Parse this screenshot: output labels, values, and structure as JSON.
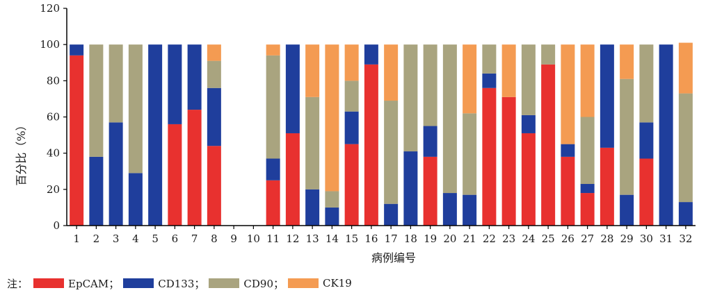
{
  "chart_data": {
    "type": "bar",
    "stacked": true,
    "xlabel": "病例编号",
    "ylabel": "百分比（%）",
    "ylim": [
      0,
      120
    ],
    "yticks": [
      0,
      20,
      40,
      60,
      80,
      100,
      120
    ],
    "grid": false,
    "categories": [
      "1",
      "2",
      "3",
      "4",
      "5",
      "6",
      "7",
      "8",
      "9",
      "10",
      "11",
      "12",
      "13",
      "14",
      "15",
      "16",
      "17",
      "18",
      "19",
      "20",
      "21",
      "22",
      "23",
      "24",
      "25",
      "26",
      "27",
      "28",
      "29",
      "30",
      "31",
      "32"
    ],
    "series": [
      {
        "name": "EpCAM",
        "color": "#e8312f",
        "values": [
          94,
          0,
          0,
          0,
          0,
          56,
          64,
          44,
          0,
          0,
          25,
          51,
          0,
          0,
          45,
          89,
          0,
          0,
          38,
          0,
          0,
          76,
          71,
          51,
          89,
          38,
          18,
          43,
          0,
          37,
          0,
          0
        ]
      },
      {
        "name": "CD133",
        "color": "#1f3e9c",
        "values": [
          6,
          38,
          57,
          29,
          100,
          44,
          36,
          32,
          0,
          0,
          12,
          49,
          20,
          10,
          18,
          11,
          12,
          41,
          17,
          18,
          17,
          8,
          0,
          10,
          0,
          7,
          5,
          57,
          17,
          20,
          100,
          13
        ]
      },
      {
        "name": "CD90",
        "color": "#a9a47f",
        "values": [
          0,
          62,
          43,
          71,
          0,
          0,
          0,
          15,
          0,
          0,
          57,
          0,
          51,
          9,
          17,
          0,
          57,
          59,
          45,
          82,
          45,
          16,
          0,
          39,
          11,
          0,
          37,
          0,
          64,
          43,
          0,
          60
        ]
      },
      {
        "name": "CK19",
        "color": "#f49b52",
        "values": [
          0,
          0,
          0,
          0,
          0,
          0,
          0,
          9,
          0,
          0,
          6,
          0,
          29,
          81,
          20,
          0,
          31,
          0,
          0,
          0,
          38,
          0,
          29,
          0,
          0,
          55,
          40,
          0,
          19,
          0,
          0,
          28
        ]
      }
    ]
  },
  "legend": {
    "note": "注：",
    "items": [
      {
        "label": "EpCAM；",
        "color": "#e8312f"
      },
      {
        "label": "CD133；",
        "color": "#1f3e9c"
      },
      {
        "label": "CD90；",
        "color": "#a9a47f"
      },
      {
        "label": "CK19",
        "color": "#f49b52"
      }
    ]
  }
}
